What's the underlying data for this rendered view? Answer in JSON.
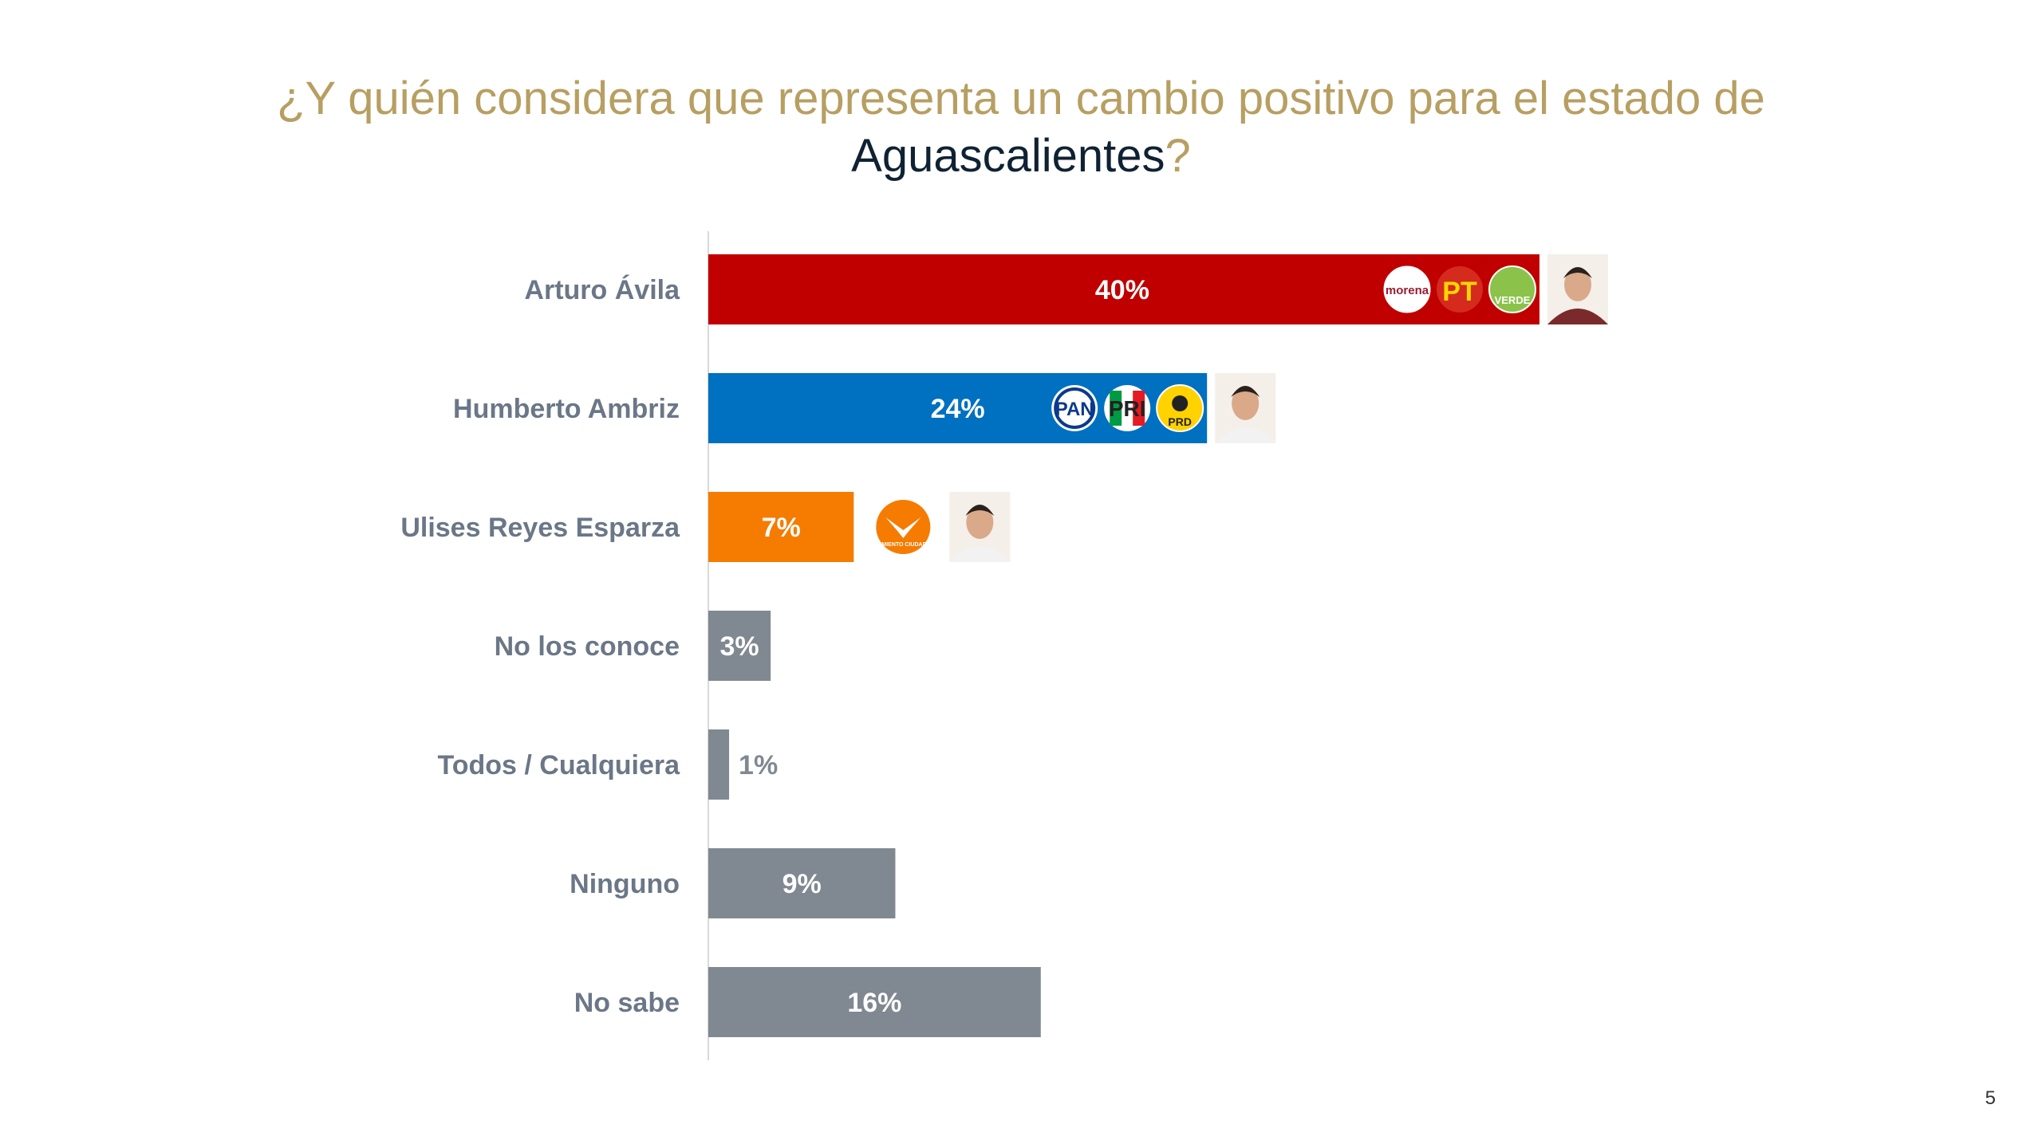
{
  "title": {
    "line1": "¿Y quién considera que representa un cambio positivo para el estado de",
    "line2_highlight": "Aguascalientes",
    "line2_end": "?"
  },
  "page_number": "5",
  "colors": {
    "title": "#b79f62",
    "title_dark": "#0f2233",
    "morena_pt_verde": "#c00000",
    "pan_pri_prd": "#0070c0",
    "mc": "#f57c00",
    "other": "#808891"
  },
  "chart_data": {
    "type": "bar",
    "orientation": "horizontal",
    "categories": [
      "Arturo Ávila",
      "Humberto Ambriz",
      "Ulises Reyes Esparza",
      "No los conoce",
      "Todos / Cualquiera",
      "Ninguno",
      "No sabe"
    ],
    "values": [
      40,
      24,
      7,
      3,
      1,
      9,
      16
    ],
    "value_labels": [
      "40%",
      "24%",
      "7%",
      "3%",
      "1%",
      "9%",
      "16%"
    ],
    "bar_colors": [
      "#c00000",
      "#0070c0",
      "#f57c00",
      "#808891",
      "#808891",
      "#808891",
      "#808891"
    ],
    "xlim": [
      0,
      50
    ],
    "unit": "%",
    "party_logos": [
      [
        "morena",
        "PT",
        "VERDE"
      ],
      [
        "PAN",
        "PRI",
        "PRD"
      ],
      [
        "MOVIMIENTO CIUDADANO"
      ],
      [],
      [],
      [],
      []
    ],
    "has_photo": [
      true,
      true,
      true,
      false,
      false,
      false,
      false
    ]
  }
}
